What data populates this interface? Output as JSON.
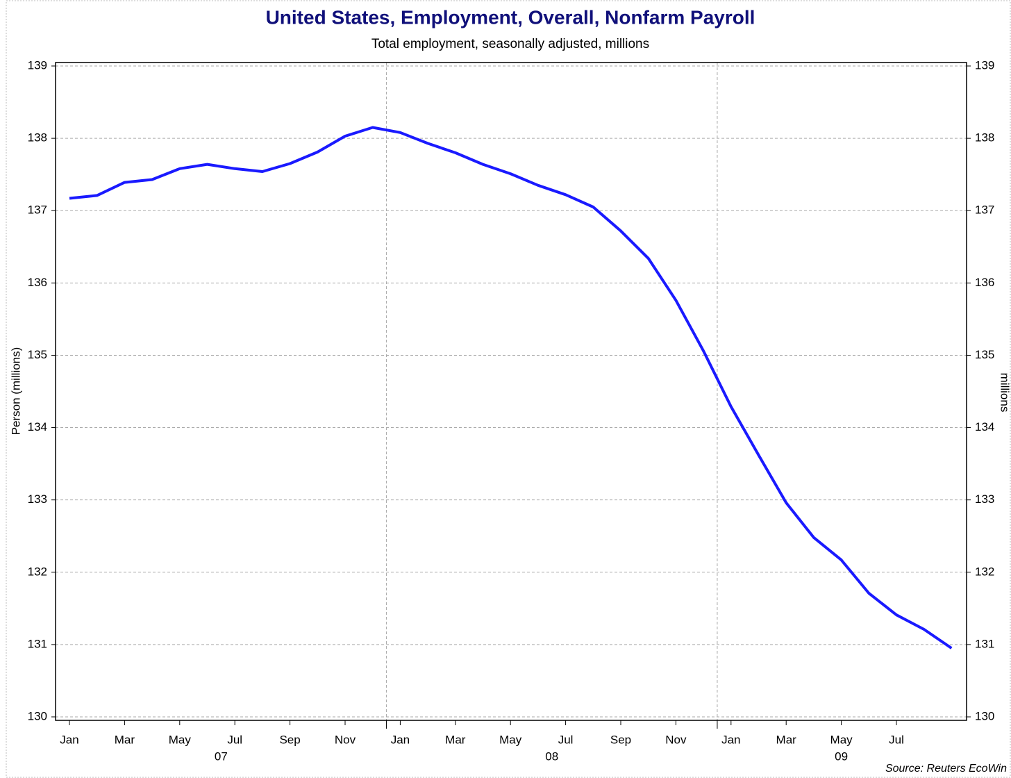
{
  "chart_data": {
    "type": "line",
    "title": "United States, Employment, Overall, Nonfarm Payroll",
    "subtitle": "Total employment, seasonally adjusted, millions",
    "y_label": "Person (millions)",
    "y2_label": "millions",
    "source": "Source: Reuters EcoWin",
    "categories": [
      "Jan",
      null,
      "Mar",
      null,
      "May",
      null,
      "Jul",
      null,
      "Sep",
      null,
      "Nov",
      null,
      "Jan",
      null,
      "Mar",
      null,
      "May",
      null,
      "Jul",
      null,
      "Sep",
      null,
      "Nov",
      null,
      "Jan",
      null,
      "Mar",
      null,
      "May",
      null,
      "Jul",
      null,
      null
    ],
    "years": [
      "07",
      "08",
      "09"
    ],
    "series": [
      {
        "name": "Nonfarm Payroll",
        "color": "#1a1aff",
        "values": [
          137.17,
          137.21,
          137.39,
          137.43,
          137.58,
          137.64,
          137.58,
          137.54,
          137.65,
          137.81,
          138.03,
          138.15,
          138.08,
          137.93,
          137.8,
          137.64,
          137.51,
          137.35,
          137.22,
          137.05,
          136.72,
          136.34,
          135.76,
          135.06,
          134.29,
          133.62,
          132.96,
          132.48,
          132.17,
          131.71,
          131.41,
          131.21,
          130.95
        ]
      }
    ],
    "ylim": [
      130,
      139
    ],
    "yticks": [
      130,
      131,
      132,
      133,
      134,
      135,
      136,
      137,
      138,
      139
    ],
    "y2lim": [
      130,
      139
    ],
    "y2ticks": [
      130,
      131,
      132,
      133,
      134,
      135,
      136,
      137,
      138,
      139
    ],
    "grid": true
  }
}
